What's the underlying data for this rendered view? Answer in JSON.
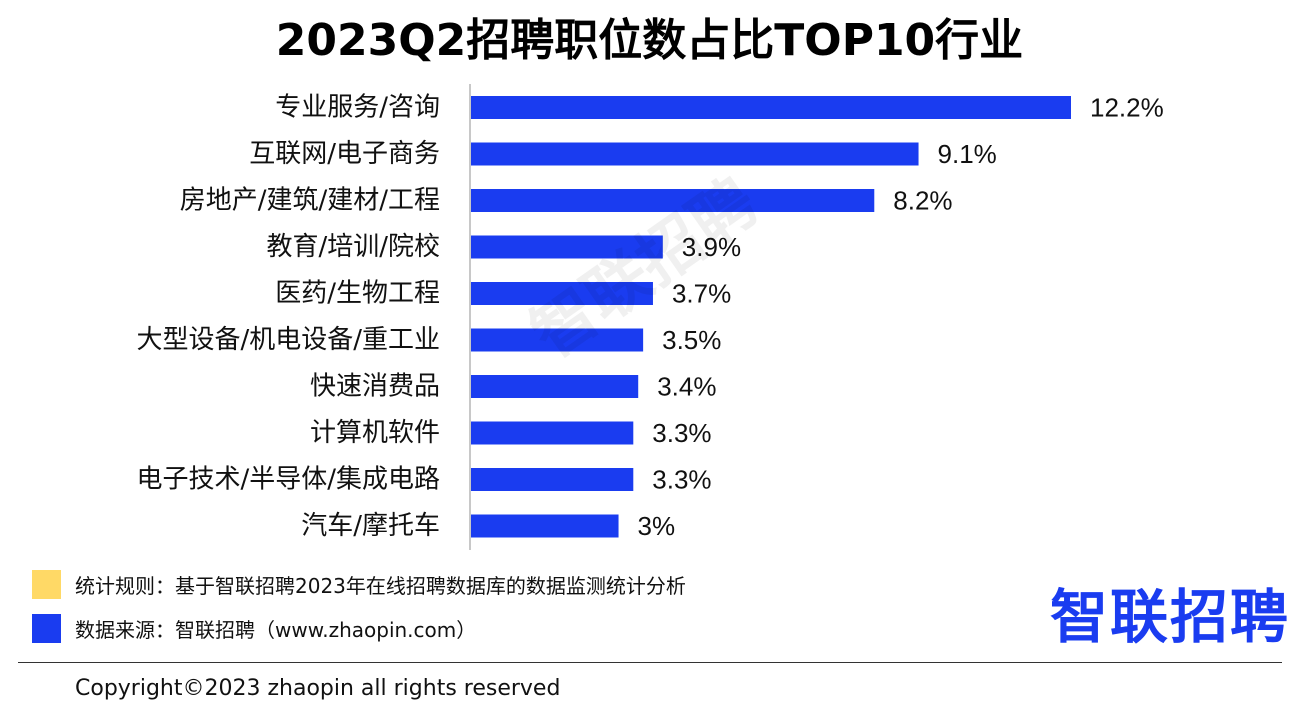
{
  "colors": {
    "bar": "#1a3cf0",
    "legend_rule": "#ffd966",
    "legend_source": "#1a3cf0",
    "logo": "#1a3cf0"
  },
  "chart_data": {
    "type": "bar",
    "orientation": "horizontal",
    "title": "2023Q2招聘职位数占比TOP10行业",
    "categories": [
      "专业服务/咨询",
      "互联网/电子商务",
      "房地产/建筑/建材/工程",
      "教育/培训/院校",
      "医药/生物工程",
      "大型设备/机电设备/重工业",
      "快速消费品",
      "计算机软件",
      "电子技术/半导体/集成电路",
      "汽车/摩托车"
    ],
    "values": [
      12.2,
      9.1,
      8.2,
      3.9,
      3.7,
      3.5,
      3.4,
      3.3,
      3.3,
      3.0
    ],
    "value_labels": [
      "12.2%",
      "9.1%",
      "8.2%",
      "3.9%",
      "3.7%",
      "3.5%",
      "3.4%",
      "3.3%",
      "3.3%",
      "3%"
    ],
    "unit": "%",
    "xlim": [
      0,
      12.2
    ],
    "grid": false
  },
  "watermark": "智联招聘",
  "legend": [
    {
      "color": "#ffd966",
      "text": "统计规则：基于智联招聘2023年在线招聘数据库的数据监测统计分析"
    },
    {
      "color": "#1a3cf0",
      "text": "数据来源：智联招聘（www.zhaopin.com）"
    }
  ],
  "logo_text": "智联招聘",
  "copyright": "Copyright©2023 zhaopin all rights reserved"
}
